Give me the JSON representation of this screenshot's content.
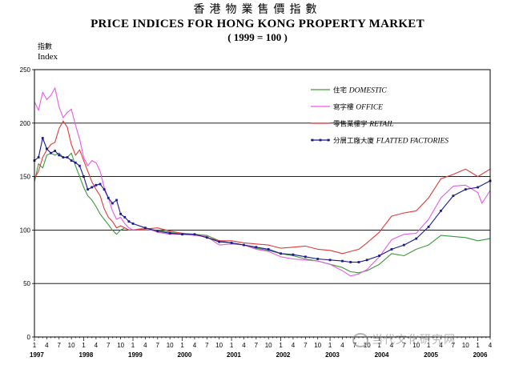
{
  "header": {
    "title_cn": "香港物業售價指數",
    "title_en": "PRICE INDICES FOR HONG KONG PROPERTY MARKET",
    "subtitle": "( 1999 = 100 )"
  },
  "y_unit": {
    "cn": "指數",
    "en": "Index"
  },
  "watermark": "当代文化研究网",
  "chart_data": {
    "type": "line",
    "ylim": [
      0,
      250
    ],
    "yticks": [
      0,
      50,
      100,
      150,
      200,
      250
    ],
    "gridlines": [
      50,
      100,
      150,
      200
    ],
    "legend_placement": "top-right",
    "x_start": "1997-01",
    "x_end": "2006-04",
    "month_tick_labels": [
      "1",
      "4",
      "7",
      "10"
    ],
    "years": [
      "1997",
      "1998",
      "1999",
      "2000",
      "2001",
      "2002",
      "2003",
      "2004",
      "2005",
      "2006"
    ],
    "series": [
      {
        "name_cn": "住宅",
        "name": "DOMESTIC",
        "color": "#3a9a3a",
        "marker": "none",
        "points": [
          [
            "1997-01",
            145
          ],
          [
            "1997-02",
            162
          ],
          [
            "1997-03",
            158
          ],
          [
            "1997-04",
            170
          ],
          [
            "1997-05",
            172
          ],
          [
            "1997-06",
            170
          ],
          [
            "1997-07",
            172
          ],
          [
            "1997-08",
            168
          ],
          [
            "1997-09",
            168
          ],
          [
            "1997-10",
            172
          ],
          [
            "1997-11",
            160
          ],
          [
            "1997-12",
            150
          ],
          [
            "1998-01",
            140
          ],
          [
            "1998-02",
            132
          ],
          [
            "1998-03",
            128
          ],
          [
            "1998-04",
            122
          ],
          [
            "1998-05",
            115
          ],
          [
            "1998-06",
            110
          ],
          [
            "1998-07",
            105
          ],
          [
            "1998-08",
            100
          ],
          [
            "1998-09",
            96
          ],
          [
            "1998-10",
            100
          ],
          [
            "1998-11",
            102
          ],
          [
            "1998-12",
            100
          ],
          [
            "1999-01",
            100
          ],
          [
            "1999-04",
            100
          ],
          [
            "1999-07",
            100
          ],
          [
            "1999-10",
            98
          ],
          [
            "2000-01",
            96
          ],
          [
            "2000-04",
            96
          ],
          [
            "2000-07",
            95
          ],
          [
            "2000-10",
            90
          ],
          [
            "2001-01",
            88
          ],
          [
            "2001-04",
            86
          ],
          [
            "2001-07",
            83
          ],
          [
            "2001-10",
            81
          ],
          [
            "2002-01",
            78
          ],
          [
            "2002-04",
            76
          ],
          [
            "2002-07",
            73
          ],
          [
            "2002-10",
            71
          ],
          [
            "2003-01",
            68
          ],
          [
            "2003-04",
            65
          ],
          [
            "2003-06",
            61
          ],
          [
            "2003-08",
            60
          ],
          [
            "2003-10",
            62
          ],
          [
            "2004-01",
            68
          ],
          [
            "2004-04",
            78
          ],
          [
            "2004-07",
            76
          ],
          [
            "2004-10",
            82
          ],
          [
            "2005-01",
            86
          ],
          [
            "2005-04",
            95
          ],
          [
            "2005-07",
            94
          ],
          [
            "2005-10",
            93
          ],
          [
            "2006-01",
            90
          ],
          [
            "2006-04",
            92
          ]
        ]
      },
      {
        "name_cn": "寫字樓",
        "name": "OFFICE",
        "color": "#e85ae8",
        "marker": "none",
        "points": [
          [
            "1997-01",
            220
          ],
          [
            "1997-02",
            212
          ],
          [
            "1997-03",
            229
          ],
          [
            "1997-04",
            222
          ],
          [
            "1997-05",
            226
          ],
          [
            "1997-06",
            233
          ],
          [
            "1997-07",
            215
          ],
          [
            "1997-08",
            205
          ],
          [
            "1997-09",
            210
          ],
          [
            "1997-10",
            213
          ],
          [
            "1997-11",
            198
          ],
          [
            "1997-12",
            185
          ],
          [
            "1998-01",
            168
          ],
          [
            "1998-02",
            160
          ],
          [
            "1998-03",
            165
          ],
          [
            "1998-04",
            163
          ],
          [
            "1998-05",
            155
          ],
          [
            "1998-06",
            140
          ],
          [
            "1998-07",
            130
          ],
          [
            "1998-08",
            118
          ],
          [
            "1998-09",
            110
          ],
          [
            "1998-10",
            112
          ],
          [
            "1998-11",
            106
          ],
          [
            "1998-12",
            102
          ],
          [
            "1999-01",
            100
          ],
          [
            "1999-04",
            102
          ],
          [
            "1999-07",
            98
          ],
          [
            "1999-10",
            96
          ],
          [
            "2000-01",
            96
          ],
          [
            "2000-04",
            95
          ],
          [
            "2000-07",
            94
          ],
          [
            "2000-10",
            86
          ],
          [
            "2001-01",
            87
          ],
          [
            "2001-04",
            86
          ],
          [
            "2001-07",
            82
          ],
          [
            "2001-10",
            80
          ],
          [
            "2002-01",
            75
          ],
          [
            "2002-04",
            73
          ],
          [
            "2002-07",
            72
          ],
          [
            "2002-10",
            71
          ],
          [
            "2003-01",
            68
          ],
          [
            "2003-04",
            62
          ],
          [
            "2003-06",
            57
          ],
          [
            "2003-08",
            59
          ],
          [
            "2003-10",
            63
          ],
          [
            "2004-01",
            75
          ],
          [
            "2004-04",
            91
          ],
          [
            "2004-07",
            96
          ],
          [
            "2004-10",
            97
          ],
          [
            "2005-01",
            110
          ],
          [
            "2005-04",
            130
          ],
          [
            "2005-07",
            141
          ],
          [
            "2005-10",
            142
          ],
          [
            "2006-01",
            135
          ],
          [
            "2006-02",
            125
          ],
          [
            "2006-04",
            137
          ]
        ]
      },
      {
        "name_cn": "零售業樓宇",
        "name": "RETAIL",
        "color": "#e03a3a",
        "marker": "none",
        "points": [
          [
            "1997-01",
            148
          ],
          [
            "1997-02",
            155
          ],
          [
            "1997-03",
            168
          ],
          [
            "1997-04",
            175
          ],
          [
            "1997-05",
            180
          ],
          [
            "1997-06",
            182
          ],
          [
            "1997-07",
            195
          ],
          [
            "1997-08",
            202
          ],
          [
            "1997-09",
            196
          ],
          [
            "1997-10",
            180
          ],
          [
            "1997-11",
            170
          ],
          [
            "1997-12",
            175
          ],
          [
            "1998-01",
            165
          ],
          [
            "1998-02",
            155
          ],
          [
            "1998-03",
            145
          ],
          [
            "1998-04",
            138
          ],
          [
            "1998-05",
            132
          ],
          [
            "1998-06",
            120
          ],
          [
            "1998-07",
            112
          ],
          [
            "1998-08",
            108
          ],
          [
            "1998-09",
            102
          ],
          [
            "1998-10",
            104
          ],
          [
            "1998-11",
            102
          ],
          [
            "1998-12",
            100
          ],
          [
            "1999-01",
            100
          ],
          [
            "1999-04",
            101
          ],
          [
            "1999-07",
            102
          ],
          [
            "1999-10",
            99
          ],
          [
            "2000-01",
            97
          ],
          [
            "2000-04",
            96
          ],
          [
            "2000-07",
            93
          ],
          [
            "2000-10",
            90
          ],
          [
            "2001-01",
            90
          ],
          [
            "2001-04",
            88
          ],
          [
            "2001-07",
            87
          ],
          [
            "2001-10",
            86
          ],
          [
            "2002-01",
            83
          ],
          [
            "2002-04",
            84
          ],
          [
            "2002-07",
            85
          ],
          [
            "2002-10",
            82
          ],
          [
            "2003-01",
            81
          ],
          [
            "2003-04",
            78
          ],
          [
            "2003-06",
            80
          ],
          [
            "2003-08",
            82
          ],
          [
            "2003-10",
            88
          ],
          [
            "2004-01",
            98
          ],
          [
            "2004-04",
            113
          ],
          [
            "2004-07",
            116
          ],
          [
            "2004-10",
            118
          ],
          [
            "2005-01",
            130
          ],
          [
            "2005-04",
            148
          ],
          [
            "2005-07",
            152
          ],
          [
            "2005-10",
            157
          ],
          [
            "2006-01",
            150
          ],
          [
            "2006-04",
            157
          ]
        ]
      },
      {
        "name_cn": "分層工廠大廈",
        "name": "FLATTED FACTORIES",
        "color": "#1a1a8c",
        "marker": "square",
        "points": [
          [
            "1997-01",
            165
          ],
          [
            "1997-02",
            168
          ],
          [
            "1997-03",
            186
          ],
          [
            "1997-04",
            176
          ],
          [
            "1997-05",
            172
          ],
          [
            "1997-06",
            174
          ],
          [
            "1997-07",
            170
          ],
          [
            "1997-08",
            168
          ],
          [
            "1997-09",
            168
          ],
          [
            "1997-10",
            165
          ],
          [
            "1997-11",
            163
          ],
          [
            "1997-12",
            160
          ],
          [
            "1998-01",
            150
          ],
          [
            "1998-02",
            138
          ],
          [
            "1998-03",
            140
          ],
          [
            "1998-04",
            142
          ],
          [
            "1998-05",
            143
          ],
          [
            "1998-06",
            138
          ],
          [
            "1998-07",
            130
          ],
          [
            "1998-08",
            125
          ],
          [
            "1998-09",
            128
          ],
          [
            "1998-10",
            115
          ],
          [
            "1998-11",
            112
          ],
          [
            "1998-12",
            108
          ],
          [
            "1999-01",
            106
          ],
          [
            "1999-04",
            102
          ],
          [
            "1999-07",
            99
          ],
          [
            "1999-10",
            97
          ],
          [
            "2000-01",
            96
          ],
          [
            "2000-04",
            96
          ],
          [
            "2000-07",
            93
          ],
          [
            "2000-10",
            89
          ],
          [
            "2001-01",
            88
          ],
          [
            "2001-04",
            86
          ],
          [
            "2001-07",
            84
          ],
          [
            "2001-10",
            82
          ],
          [
            "2002-01",
            78
          ],
          [
            "2002-04",
            77
          ],
          [
            "2002-07",
            75
          ],
          [
            "2002-10",
            73
          ],
          [
            "2003-01",
            72
          ],
          [
            "2003-04",
            71
          ],
          [
            "2003-06",
            70
          ],
          [
            "2003-08",
            70
          ],
          [
            "2003-10",
            72
          ],
          [
            "2004-01",
            76
          ],
          [
            "2004-04",
            82
          ],
          [
            "2004-07",
            86
          ],
          [
            "2004-10",
            92
          ],
          [
            "2005-01",
            103
          ],
          [
            "2005-04",
            118
          ],
          [
            "2005-07",
            132
          ],
          [
            "2005-10",
            138
          ],
          [
            "2006-01",
            140
          ],
          [
            "2006-04",
            146
          ]
        ]
      }
    ]
  }
}
